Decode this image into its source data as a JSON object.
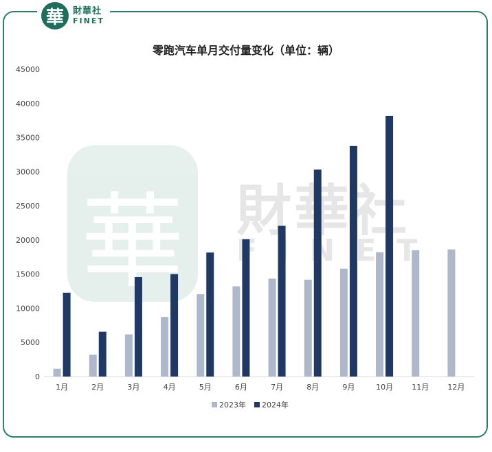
{
  "logo": {
    "mark": "華",
    "cn": "財華社",
    "en": "FINET"
  },
  "watermark": {
    "mark": "華",
    "cn": "財華社",
    "en": "FINET"
  },
  "colors": {
    "series_2023": "#adb9ca",
    "series_2024": "#203864",
    "frame": "#2e7d6b"
  },
  "chart_data": {
    "type": "bar",
    "title": "零跑汽车单月交付量变化（单位：辆）",
    "categories": [
      "1月",
      "2月",
      "3月",
      "4月",
      "5月",
      "6月",
      "7月",
      "8月",
      "9月",
      "10月",
      "11月",
      "12月"
    ],
    "series": [
      {
        "name": "2023年",
        "values": [
          1139,
          3198,
          6172,
          8726,
          12058,
          13209,
          14335,
          14190,
          15800,
          18202,
          18508,
          18618
        ]
      },
      {
        "name": "2024年",
        "values": [
          12277,
          6566,
          14567,
          15005,
          18165,
          20116,
          22093,
          30305,
          33767,
          38177,
          null,
          null
        ]
      }
    ],
    "ylim": [
      0,
      45000
    ],
    "yticks": [
      0,
      5000,
      10000,
      15000,
      20000,
      25000,
      30000,
      35000,
      40000,
      45000
    ],
    "grid": false,
    "legend": "bottom"
  }
}
